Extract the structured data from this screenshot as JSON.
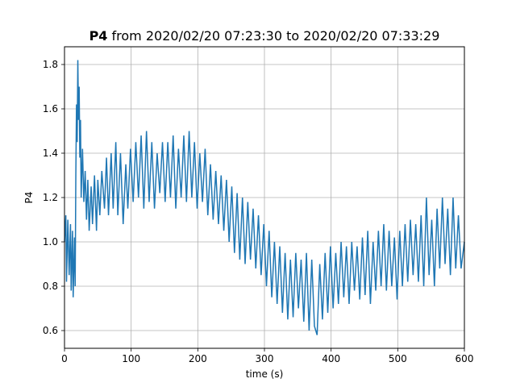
{
  "chart_data": {
    "type": "line",
    "title": {
      "bold": "P4",
      "rest": " from 2020/02/20 07:23:30 to 2020/02/20 07:33:29"
    },
    "xlabel": "time (s)",
    "ylabel": "P4",
    "xlim": [
      0,
      600
    ],
    "ylim": [
      0.52,
      1.88
    ],
    "xticks": [
      0,
      100,
      200,
      300,
      400,
      500,
      600
    ],
    "yticks": [
      0.6,
      0.8,
      1.0,
      1.2,
      1.4,
      1.6,
      1.8
    ],
    "xtick_labels": [
      "0",
      "100",
      "200",
      "300",
      "400",
      "500",
      "600"
    ],
    "ytick_labels": [
      "0.6",
      "0.8",
      "1.0",
      "1.2",
      "1.4",
      "1.6",
      "1.8"
    ],
    "grid": true,
    "series": [
      {
        "color": "#1f77b4",
        "points": [
          [
            0,
            1.0
          ],
          [
            2,
            1.12
          ],
          [
            3,
            0.82
          ],
          [
            5,
            1.1
          ],
          [
            7,
            0.85
          ],
          [
            9,
            1.08
          ],
          [
            10,
            0.78
          ],
          [
            12,
            1.05
          ],
          [
            13,
            0.75
          ],
          [
            15,
            1.02
          ],
          [
            16,
            0.8
          ],
          [
            17,
            1.3
          ],
          [
            18,
            1.62
          ],
          [
            19,
            1.45
          ],
          [
            20,
            1.82
          ],
          [
            21,
            1.55
          ],
          [
            22,
            1.7
          ],
          [
            23,
            1.38
          ],
          [
            24,
            1.55
          ],
          [
            25,
            1.2
          ],
          [
            27,
            1.42
          ],
          [
            29,
            1.18
          ],
          [
            31,
            1.32
          ],
          [
            33,
            1.1
          ],
          [
            35,
            1.28
          ],
          [
            37,
            1.05
          ],
          [
            40,
            1.25
          ],
          [
            42,
            1.08
          ],
          [
            45,
            1.3
          ],
          [
            48,
            1.05
          ],
          [
            50,
            1.28
          ],
          [
            53,
            1.12
          ],
          [
            56,
            1.32
          ],
          [
            60,
            1.15
          ],
          [
            63,
            1.38
          ],
          [
            66,
            1.12
          ],
          [
            70,
            1.4
          ],
          [
            73,
            1.15
          ],
          [
            77,
            1.45
          ],
          [
            80,
            1.12
          ],
          [
            84,
            1.4
          ],
          [
            88,
            1.08
          ],
          [
            92,
            1.35
          ],
          [
            95,
            1.15
          ],
          [
            99,
            1.42
          ],
          [
            103,
            1.18
          ],
          [
            107,
            1.45
          ],
          [
            111,
            1.2
          ],
          [
            115,
            1.48
          ],
          [
            119,
            1.15
          ],
          [
            123,
            1.5
          ],
          [
            127,
            1.18
          ],
          [
            131,
            1.45
          ],
          [
            135,
            1.15
          ],
          [
            139,
            1.4
          ],
          [
            143,
            1.22
          ],
          [
            147,
            1.45
          ],
          [
            151,
            1.18
          ],
          [
            155,
            1.45
          ],
          [
            159,
            1.2
          ],
          [
            163,
            1.48
          ],
          [
            167,
            1.15
          ],
          [
            171,
            1.42
          ],
          [
            175,
            1.2
          ],
          [
            179,
            1.48
          ],
          [
            183,
            1.18
          ],
          [
            187,
            1.5
          ],
          [
            191,
            1.2
          ],
          [
            195,
            1.45
          ],
          [
            199,
            1.15
          ],
          [
            203,
            1.4
          ],
          [
            207,
            1.18
          ],
          [
            211,
            1.42
          ],
          [
            215,
            1.12
          ],
          [
            219,
            1.35
          ],
          [
            223,
            1.1
          ],
          [
            227,
            1.32
          ],
          [
            231,
            1.08
          ],
          [
            235,
            1.3
          ],
          [
            239,
            1.05
          ],
          [
            243,
            1.28
          ],
          [
            247,
            1.0
          ],
          [
            251,
            1.25
          ],
          [
            255,
            0.95
          ],
          [
            259,
            1.22
          ],
          [
            263,
            0.92
          ],
          [
            267,
            1.2
          ],
          [
            271,
            0.9
          ],
          [
            275,
            1.18
          ],
          [
            279,
            0.92
          ],
          [
            283,
            1.15
          ],
          [
            287,
            0.88
          ],
          [
            291,
            1.12
          ],
          [
            295,
            0.85
          ],
          [
            299,
            1.08
          ],
          [
            303,
            0.8
          ],
          [
            307,
            1.05
          ],
          [
            311,
            0.75
          ],
          [
            315,
            1.0
          ],
          [
            319,
            0.72
          ],
          [
            323,
            0.98
          ],
          [
            327,
            0.68
          ],
          [
            331,
            0.95
          ],
          [
            335,
            0.65
          ],
          [
            339,
            0.92
          ],
          [
            343,
            0.66
          ],
          [
            347,
            0.95
          ],
          [
            351,
            0.7
          ],
          [
            355,
            0.92
          ],
          [
            359,
            0.64
          ],
          [
            363,
            0.95
          ],
          [
            367,
            0.6
          ],
          [
            371,
            0.92
          ],
          [
            375,
            0.62
          ],
          [
            379,
            0.58
          ],
          [
            383,
            0.9
          ],
          [
            387,
            0.65
          ],
          [
            391,
            0.95
          ],
          [
            395,
            0.68
          ],
          [
            399,
            0.98
          ],
          [
            403,
            0.7
          ],
          [
            407,
            0.95
          ],
          [
            411,
            0.72
          ],
          [
            415,
            1.0
          ],
          [
            419,
            0.75
          ],
          [
            423,
            0.98
          ],
          [
            427,
            0.72
          ],
          [
            431,
            1.0
          ],
          [
            435,
            0.78
          ],
          [
            439,
            0.98
          ],
          [
            443,
            0.74
          ],
          [
            447,
            1.02
          ],
          [
            451,
            0.76
          ],
          [
            455,
            1.05
          ],
          [
            459,
            0.72
          ],
          [
            463,
            1.0
          ],
          [
            467,
            0.78
          ],
          [
            471,
            1.05
          ],
          [
            475,
            0.8
          ],
          [
            479,
            1.08
          ],
          [
            483,
            0.78
          ],
          [
            487,
            1.05
          ],
          [
            491,
            0.8
          ],
          [
            495,
            1.02
          ],
          [
            499,
            0.74
          ],
          [
            503,
            1.05
          ],
          [
            507,
            0.8
          ],
          [
            511,
            1.08
          ],
          [
            515,
            0.82
          ],
          [
            519,
            1.1
          ],
          [
            523,
            0.85
          ],
          [
            527,
            1.08
          ],
          [
            531,
            0.82
          ],
          [
            535,
            1.12
          ],
          [
            539,
            0.8
          ],
          [
            543,
            1.2
          ],
          [
            547,
            0.85
          ],
          [
            551,
            1.1
          ],
          [
            555,
            0.8
          ],
          [
            559,
            1.15
          ],
          [
            563,
            0.88
          ],
          [
            567,
            1.2
          ],
          [
            571,
            0.9
          ],
          [
            575,
            1.15
          ],
          [
            579,
            0.85
          ],
          [
            583,
            1.2
          ],
          [
            587,
            0.88
          ],
          [
            591,
            1.12
          ],
          [
            595,
            0.88
          ],
          [
            600,
            1.0
          ]
        ]
      }
    ]
  }
}
